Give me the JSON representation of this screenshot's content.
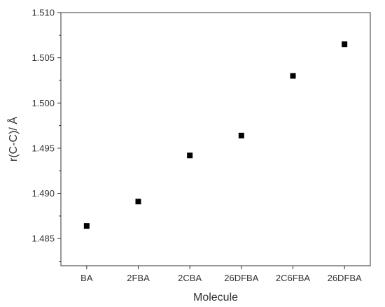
{
  "chart_data": {
    "type": "scatter",
    "xlabel": "Molecule",
    "ylabel": "r(C-C)/ Å",
    "categories": [
      "BA",
      "2FBA",
      "2CBA",
      "26DFBA",
      "2C6FBA",
      "26DFBA"
    ],
    "values": [
      1.4864,
      1.4891,
      1.4942,
      1.4964,
      1.503,
      1.5065
    ],
    "ylim": [
      1.482,
      1.51
    ],
    "yticks": [
      "1.485",
      "1.490",
      "1.495",
      "1.500",
      "1.505",
      "1.510"
    ],
    "grid": false,
    "marker": "square",
    "marker_color": "#000000"
  }
}
